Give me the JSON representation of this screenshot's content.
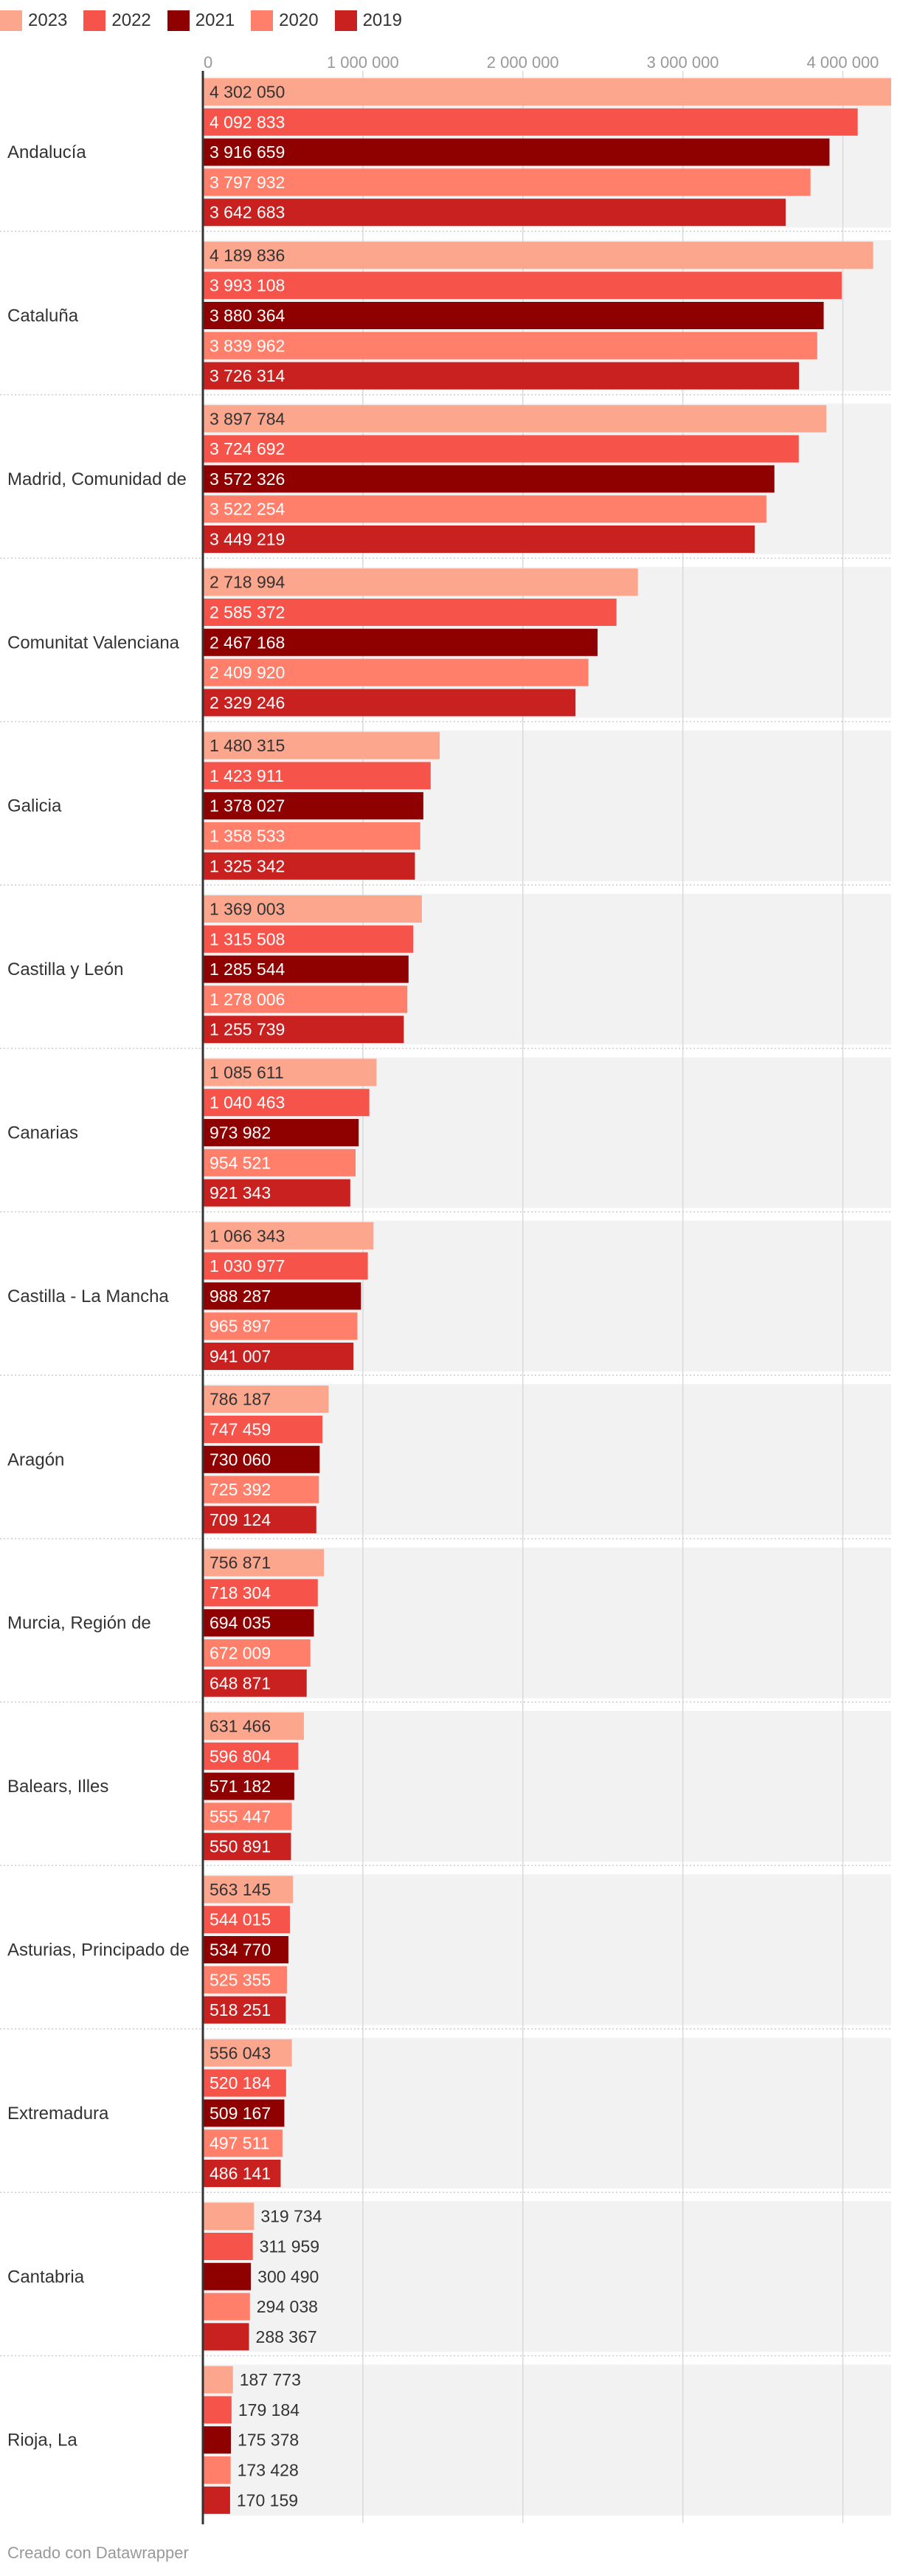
{
  "legend": {
    "items": [
      {
        "label": "2023",
        "color": "#fca68d"
      },
      {
        "label": "2022",
        "color": "#f6544a"
      },
      {
        "label": "2021",
        "color": "#8f0000"
      },
      {
        "label": "2020",
        "color": "#ff7f6b"
      },
      {
        "label": "2019",
        "color": "#c8211f"
      }
    ]
  },
  "credit": "Creado con Datawrapper",
  "chart_data": {
    "type": "bar",
    "orientation": "horizontal",
    "title": "",
    "xlabel": "",
    "ylabel": "",
    "xlim": [
      0,
      4302050
    ],
    "ticks": [
      {
        "value": 0,
        "label": "0"
      },
      {
        "value": 1000000,
        "label": "1 000 000"
      },
      {
        "value": 2000000,
        "label": "2 000 000"
      },
      {
        "value": 3000000,
        "label": "3 000 000"
      },
      {
        "value": 4000000,
        "label": "4 000 000"
      }
    ],
    "grid": true,
    "legend_position": "top-left",
    "categories": [
      "Andalucía",
      "Cataluña",
      "Madrid, Comunidad de",
      "Comunitat Valenciana",
      "Galicia",
      "Castilla y León",
      "Canarias",
      "Castilla - La Mancha",
      "Aragón",
      "Murcia, Región de",
      "Balears, Illes",
      "Asturias, Principado de",
      "Extremadura",
      "Cantabria",
      "Rioja, La"
    ],
    "series": [
      {
        "name": "2023",
        "color": "#fca68d",
        "values": [
          4302050,
          4189836,
          3897784,
          2718994,
          1480315,
          1369003,
          1085611,
          1066343,
          786187,
          756871,
          631466,
          563145,
          556043,
          319734,
          187773
        ],
        "labels": [
          "4 302 050",
          "4 189 836",
          "3 897 784",
          "2 718 994",
          "1 480 315",
          "1 369 003",
          "1 085 611",
          "1 066 343",
          "786 187",
          "756 871",
          "631 466",
          "563 145",
          "556 043",
          "319 734",
          "187 773"
        ]
      },
      {
        "name": "2022",
        "color": "#f6544a",
        "values": [
          4092833,
          3993108,
          3724692,
          2585372,
          1423911,
          1315508,
          1040463,
          1030977,
          747459,
          718304,
          596804,
          544015,
          520184,
          311959,
          179184
        ],
        "labels": [
          "4 092 833",
          "3 993 108",
          "3 724 692",
          "2 585 372",
          "1 423 911",
          "1 315 508",
          "1 040 463",
          "1 030 977",
          "747 459",
          "718 304",
          "596 804",
          "544 015",
          "520 184",
          "311 959",
          "179 184"
        ]
      },
      {
        "name": "2021",
        "color": "#8f0000",
        "values": [
          3916659,
          3880364,
          3572326,
          2467168,
          1378027,
          1285544,
          973982,
          988287,
          730060,
          694035,
          571182,
          534770,
          509167,
          300490,
          175378
        ],
        "labels": [
          "3 916 659",
          "3 880 364",
          "3 572 326",
          "2 467 168",
          "1 378 027",
          "1 285 544",
          "973 982",
          "988 287",
          "730 060",
          "694 035",
          "571 182",
          "534 770",
          "509 167",
          "300 490",
          "175 378"
        ]
      },
      {
        "name": "2020",
        "color": "#ff7f6b",
        "values": [
          3797932,
          3839962,
          3522254,
          2409920,
          1358533,
          1278006,
          954521,
          965897,
          725392,
          672009,
          555447,
          525355,
          497511,
          294038,
          173428
        ],
        "labels": [
          "3 797 932",
          "3 839 962",
          "3 522 254",
          "2 409 920",
          "1 358 533",
          "1 278 006",
          "954 521",
          "965 897",
          "725 392",
          "672 009",
          "555 447",
          "525 355",
          "497 511",
          "294 038",
          "173 428"
        ]
      },
      {
        "name": "2019",
        "color": "#c8211f",
        "values": [
          3642683,
          3726314,
          3449219,
          2329246,
          1325342,
          1255739,
          921343,
          941007,
          709124,
          648871,
          550891,
          518251,
          486141,
          288367,
          170159
        ],
        "labels": [
          "3 642 683",
          "3 726 314",
          "3 449 219",
          "2 329 246",
          "1 325 342",
          "1 255 739",
          "921 343",
          "941 007",
          "709 124",
          "648 871",
          "550 891",
          "518 251",
          "486 141",
          "288 367",
          "170 159"
        ]
      }
    ]
  }
}
